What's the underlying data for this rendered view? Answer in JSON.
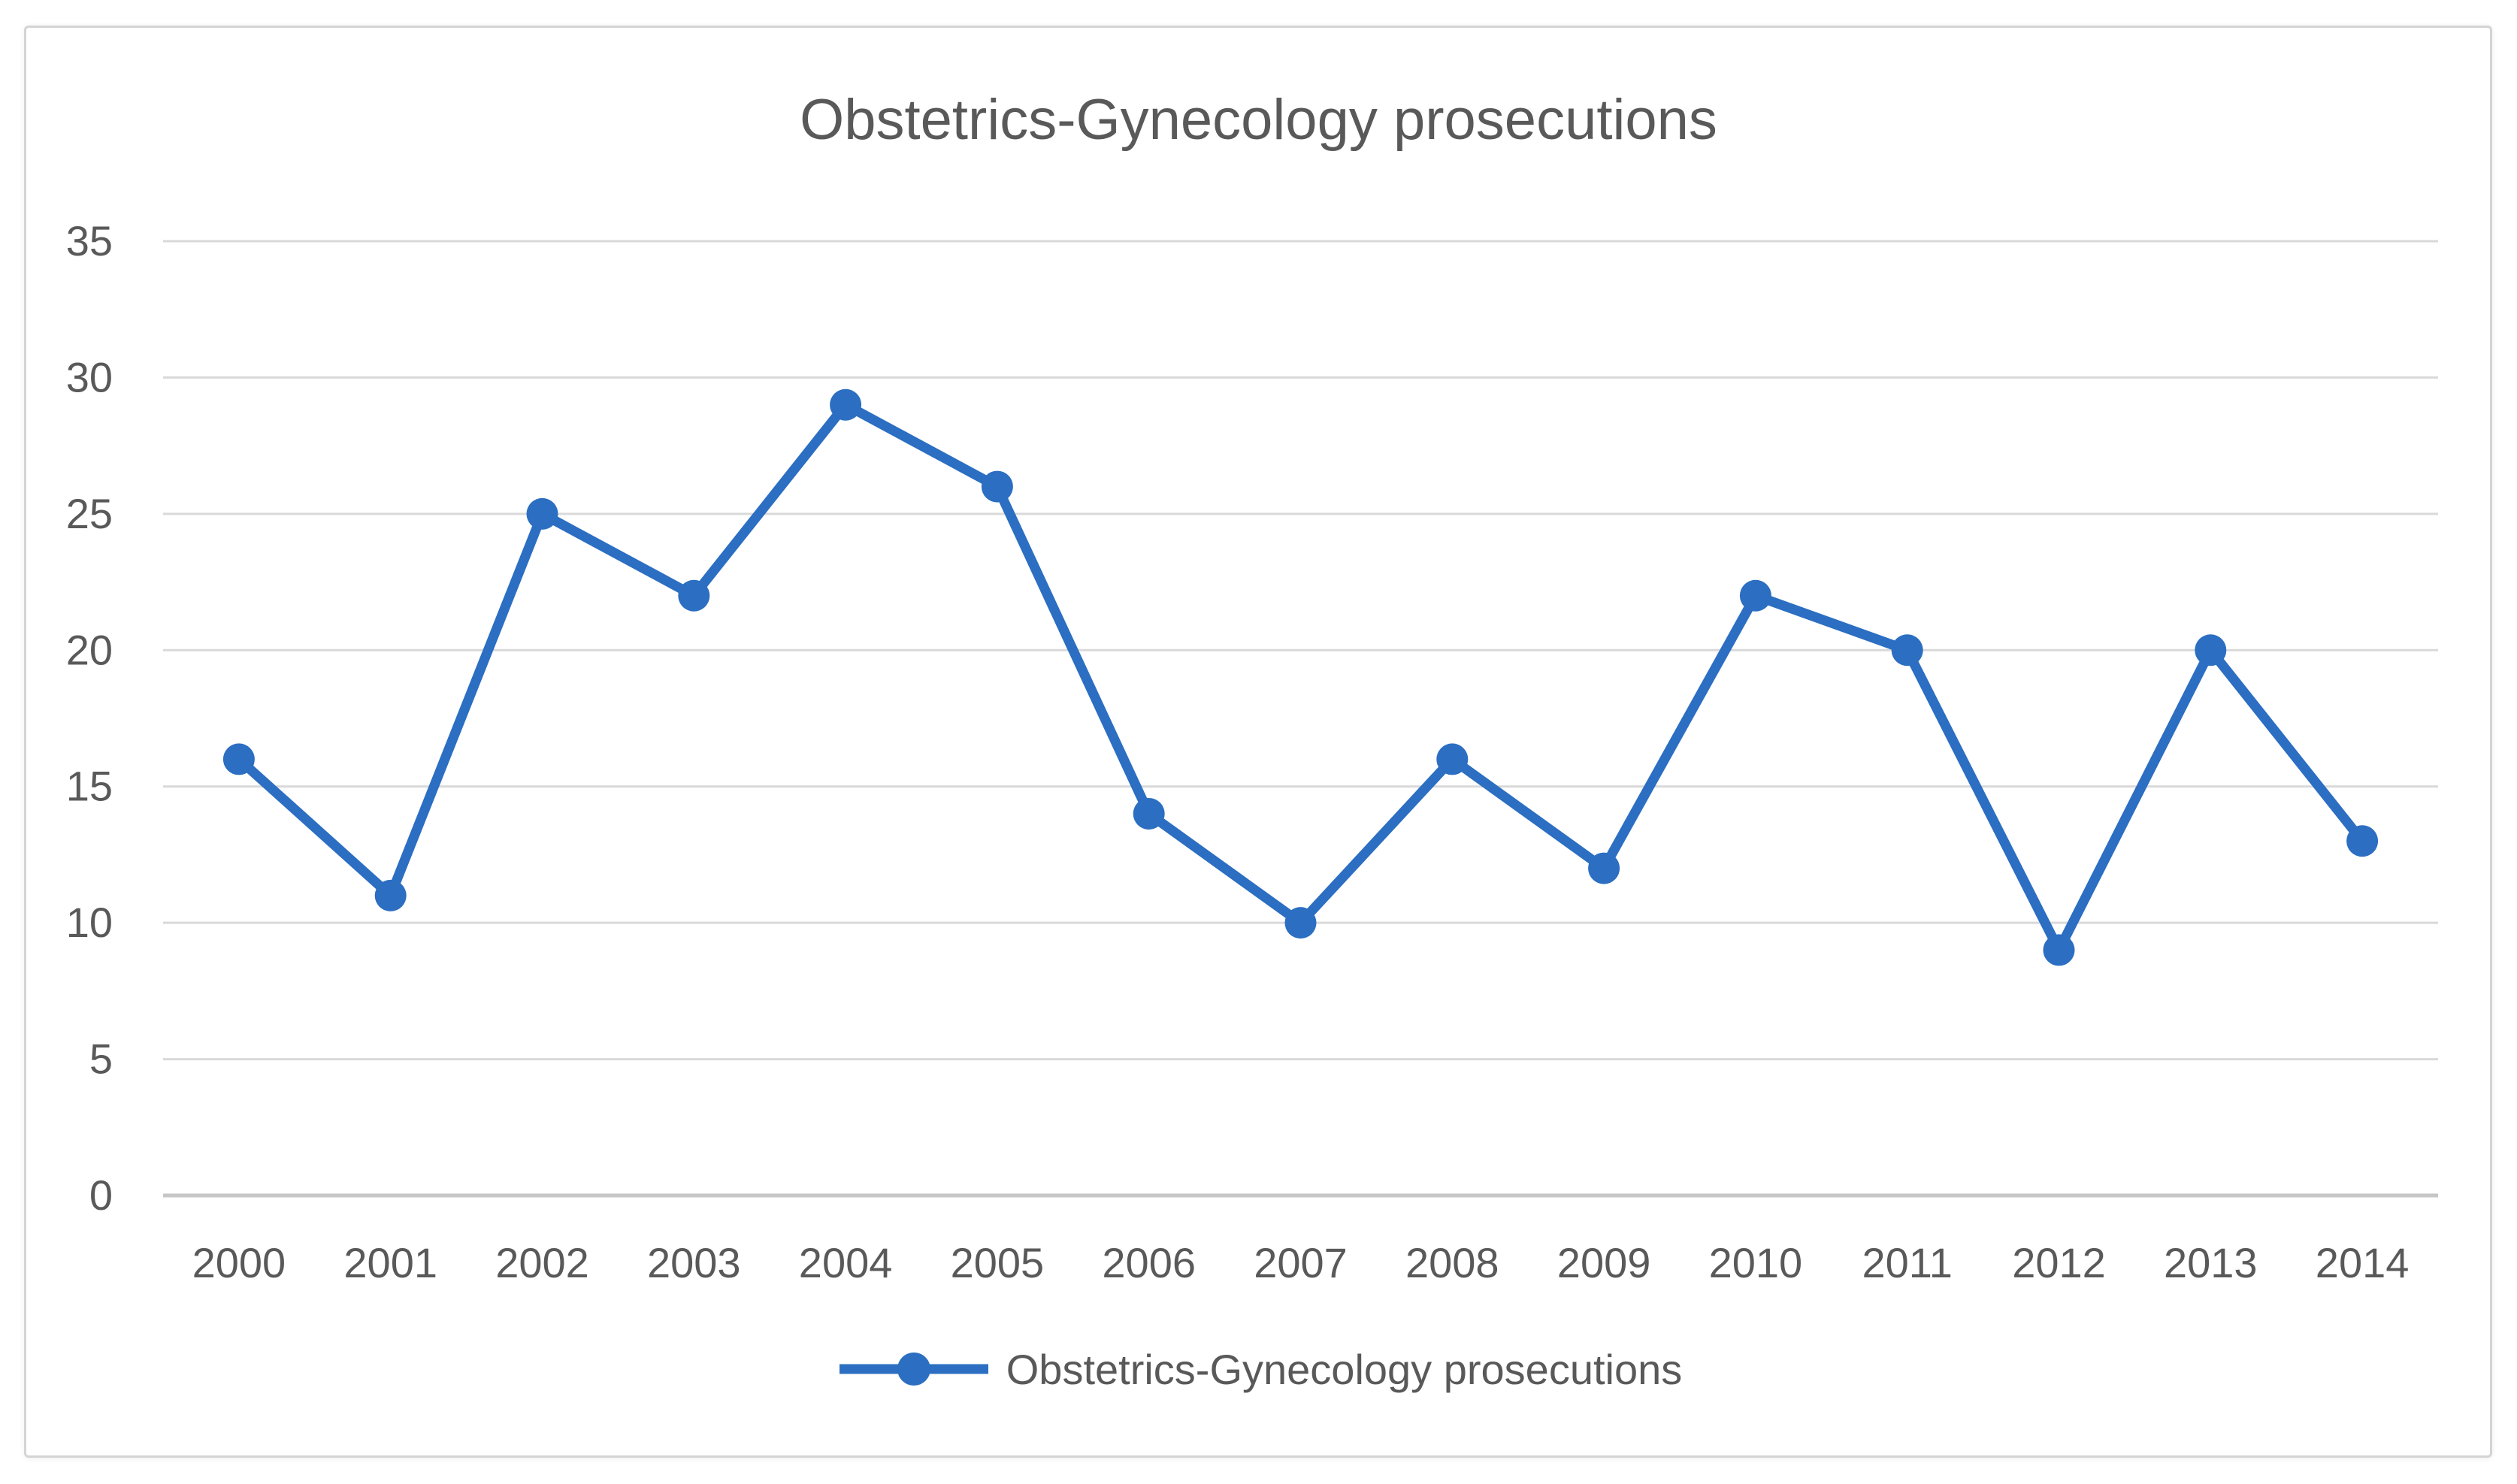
{
  "chart_data": {
    "type": "line",
    "title": "Obstetrics-Gynecology prosecutions",
    "categories": [
      "2000",
      "2001",
      "2002",
      "2003",
      "2004",
      "2005",
      "2006",
      "2007",
      "2008",
      "2009",
      "2010",
      "2011",
      "2012",
      "2013",
      "2014"
    ],
    "series": [
      {
        "name": "Obstetrics-Gynecology prosecutions",
        "values": [
          16,
          11,
          25,
          22,
          29,
          26,
          14,
          10,
          16,
          12,
          22,
          20,
          9,
          20,
          13
        ]
      }
    ],
    "xlabel": "",
    "ylabel": "",
    "ylim": [
      0,
      35
    ],
    "yticks": [
      0,
      5,
      10,
      15,
      20,
      25,
      30,
      35
    ],
    "grid": true,
    "legend_position": "bottom",
    "marker": "circle",
    "colors": {
      "line": "#2B6EC2",
      "marker": "#2B6EC2",
      "gridline": "#D9D9D9",
      "axis_line": "#C6C6C6",
      "tick_text": "#595959",
      "title_text": "#595959",
      "frame_border": "#D4D4D4",
      "background": "#FFFFFF"
    }
  }
}
